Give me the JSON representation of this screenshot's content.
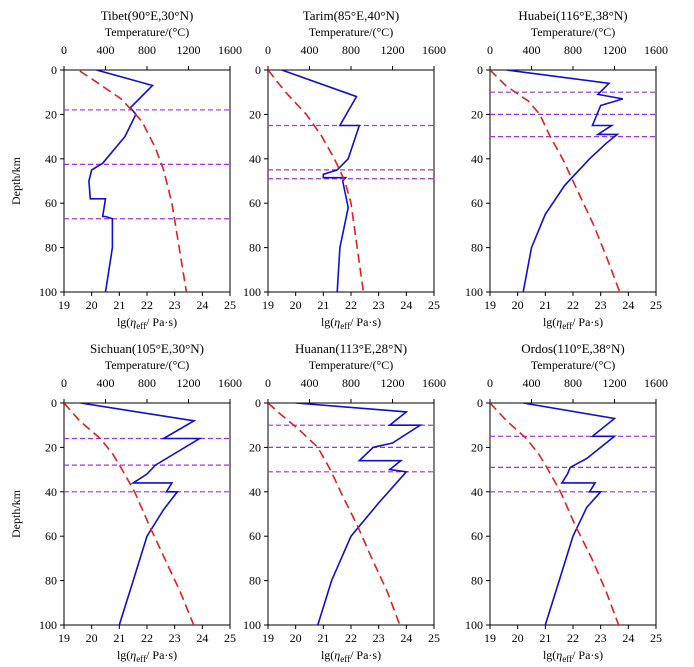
{
  "figure": {
    "y_axis_title": "Depth/km",
    "x_top_title": "Temperature/(°C)",
    "x_bottom_title_prefix": "lg(",
    "x_bottom_title_eta": "η",
    "x_bottom_title_sub": "eff",
    "x_bottom_title_suffix": "/ Pa·s)",
    "colors": {
      "viscosity": "#1010c8",
      "temperature": "#e02020",
      "boundary": "#a030e0"
    }
  },
  "chart_data": [
    {
      "type": "line",
      "title": "Tibet(90°E,30°N)",
      "xlabel": "lg(ηeff/ Pa·s)",
      "xlabel_top": "Temperature/(°C)",
      "ylabel": "Depth/km",
      "xlim": [
        19,
        25
      ],
      "xlim_top": [
        0,
        1600
      ],
      "ylim": [
        0,
        100
      ],
      "y_inverted": true,
      "x_ticks": [
        "19",
        "20",
        "21",
        "22",
        "23",
        "24",
        "25"
      ],
      "x_top_ticks": [
        "0",
        "400",
        "800",
        "1200",
        "1600"
      ],
      "y_ticks": [
        "0",
        "20",
        "40",
        "60",
        "80",
        "100"
      ],
      "series": [
        {
          "name": "viscosity",
          "axis": "bottom",
          "x": [
            19.3,
            22.2,
            21.4,
            21.6,
            21.2,
            20.4,
            20.0,
            19.9,
            19.95,
            20.5,
            20.4,
            20.5,
            20.75,
            20.75,
            20.5
          ],
          "y": [
            -3,
            7,
            17,
            20,
            30,
            42,
            45,
            50,
            58,
            58,
            66,
            66,
            67,
            80,
            100
          ]
        },
        {
          "name": "temperature",
          "axis": "top",
          "x": [
            40,
            300,
            550,
            750,
            880,
            960,
            1040,
            1110,
            1180
          ],
          "y": [
            -3,
            5,
            13,
            23,
            35,
            45,
            60,
            80,
            100
          ]
        }
      ],
      "boundaries": [
        18,
        42.5,
        67
      ]
    },
    {
      "type": "line",
      "title": "Tarim(85°E,40°N)",
      "xlabel": "lg(ηeff/ Pa·s)",
      "xlabel_top": "Temperature/(°C)",
      "ylabel": "Depth/km",
      "xlim": [
        19,
        25
      ],
      "xlim_top": [
        0,
        1600
      ],
      "ylim": [
        0,
        100
      ],
      "y_inverted": true,
      "x_ticks": [
        "19",
        "20",
        "21",
        "22",
        "23",
        "24",
        "25"
      ],
      "x_top_ticks": [
        "0",
        "400",
        "800",
        "1200",
        "1600"
      ],
      "y_ticks": [
        "0",
        "20",
        "40",
        "60",
        "80",
        "100"
      ],
      "series": [
        {
          "name": "viscosity",
          "axis": "bottom",
          "x": [
            19.5,
            22.2,
            21.6,
            22.3,
            21.9,
            21.5,
            21.0,
            21.0,
            21.8,
            21.7,
            21.9,
            21.6,
            21.5
          ],
          "y": [
            0,
            12,
            25,
            25,
            40,
            45,
            47,
            48.5,
            48.5,
            50,
            62,
            80,
            100
          ]
        },
        {
          "name": "temperature",
          "axis": "top",
          "x": [
            0,
            170,
            370,
            520,
            640,
            740,
            800,
            860,
            920
          ],
          "y": [
            0,
            10,
            20,
            30,
            40,
            50,
            60,
            80,
            100
          ]
        }
      ],
      "boundaries": [
        25,
        45,
        49
      ]
    },
    {
      "type": "line",
      "title": "Huabei(116°E,38°N)",
      "xlabel": "lg(ηeff/ Pa·s)",
      "xlabel_top": "Temperature/(°C)",
      "ylabel": "Depth/km",
      "xlim": [
        19,
        25
      ],
      "xlim_top": [
        0,
        1600
      ],
      "ylim": [
        0,
        100
      ],
      "y_inverted": true,
      "x_ticks": [
        "19",
        "20",
        "21",
        "22",
        "23",
        "24",
        "25"
      ],
      "x_top_ticks": [
        "0",
        "400",
        "800",
        "1200",
        "1600"
      ],
      "y_ticks": [
        "0",
        "20",
        "40",
        "60",
        "80",
        "100"
      ],
      "series": [
        {
          "name": "viscosity",
          "axis": "bottom",
          "x": [
            19.6,
            23.3,
            22.9,
            23.8,
            23.0,
            22.7,
            23.4,
            22.9,
            23.6,
            23.2,
            22.6,
            21.7,
            21.0,
            20.5,
            20.2
          ],
          "y": [
            0,
            6,
            11,
            13,
            16,
            25,
            25,
            29,
            29,
            33,
            40,
            52,
            65,
            80,
            100
          ]
        },
        {
          "name": "temperature",
          "axis": "top",
          "x": [
            0,
            150,
            370,
            480,
            580,
            700,
            850,
            1000,
            1130,
            1250
          ],
          "y": [
            0,
            7,
            14,
            20,
            30,
            40,
            55,
            70,
            85,
            100
          ]
        }
      ],
      "boundaries": [
        10,
        20,
        30
      ]
    },
    {
      "type": "line",
      "title": "Sichuan(105°E,30°N)",
      "xlabel": "lg(ηeff/ Pa·s)",
      "xlabel_top": "Temperature/(°C)",
      "ylabel": "Depth/km",
      "xlim": [
        19,
        25
      ],
      "xlim_top": [
        0,
        1600
      ],
      "ylim": [
        0,
        100
      ],
      "y_inverted": true,
      "x_ticks": [
        "19",
        "20",
        "21",
        "22",
        "23",
        "24",
        "25"
      ],
      "x_top_ticks": [
        "0",
        "400",
        "800",
        "1200",
        "1600"
      ],
      "y_ticks": [
        "0",
        "20",
        "40",
        "60",
        "80",
        "100"
      ],
      "series": [
        {
          "name": "viscosity",
          "axis": "bottom",
          "x": [
            19.6,
            23.7,
            22.6,
            23.9,
            22.7,
            22.3,
            22.0,
            21.5,
            22.9,
            22.7,
            23.1,
            22.6,
            22.0,
            21.5,
            21.0
          ],
          "y": [
            0,
            8,
            16,
            16,
            25,
            28,
            32,
            36,
            36,
            40,
            40,
            48,
            60,
            80,
            100
          ]
        },
        {
          "name": "temperature",
          "axis": "top",
          "x": [
            0,
            150,
            350,
            470,
            560,
            680,
            820,
            970,
            1120,
            1250
          ],
          "y": [
            0,
            8,
            16,
            23,
            30,
            40,
            55,
            70,
            85,
            100
          ]
        }
      ],
      "boundaries": [
        16,
        28,
        40
      ]
    },
    {
      "type": "line",
      "title": "Huanan(113°E,28°N)",
      "xlabel": "lg(ηeff/ Pa·s)",
      "xlabel_top": "Temperature/(°C)",
      "ylabel": "Depth/km",
      "xlim": [
        19,
        25
      ],
      "xlim_top": [
        0,
        1600
      ],
      "ylim": [
        0,
        100
      ],
      "y_inverted": true,
      "x_ticks": [
        "19",
        "20",
        "21",
        "22",
        "23",
        "24",
        "25"
      ],
      "x_top_ticks": [
        "0",
        "400",
        "800",
        "1200",
        "1600"
      ],
      "y_ticks": [
        "0",
        "20",
        "40",
        "60",
        "80",
        "100"
      ],
      "series": [
        {
          "name": "viscosity",
          "axis": "bottom",
          "x": [
            20.0,
            24.0,
            23.4,
            24.5,
            23.5,
            22.8,
            22.3,
            23.8,
            23.4,
            24.0,
            23.0,
            22.0,
            21.3,
            20.8
          ],
          "y": [
            0,
            4,
            10,
            10,
            18,
            20,
            26,
            26,
            30,
            31,
            45,
            60,
            80,
            100
          ]
        },
        {
          "name": "temperature",
          "axis": "top",
          "x": [
            0,
            120,
            300,
            480,
            600,
            720,
            860,
            1000,
            1150,
            1270
          ],
          "y": [
            0,
            5,
            12,
            20,
            30,
            42,
            55,
            70,
            85,
            100
          ]
        }
      ],
      "boundaries": [
        10,
        20,
        31
      ]
    },
    {
      "type": "line",
      "title": "Ordos(110°E,38°N)",
      "xlabel": "lg(ηeff/ Pa·s)",
      "xlabel_top": "Temperature/(°C)",
      "ylabel": "Depth/km",
      "xlim": [
        19,
        25
      ],
      "xlim_top": [
        0,
        1600
      ],
      "ylim": [
        0,
        100
      ],
      "y_inverted": true,
      "x_ticks": [
        "19",
        "20",
        "21",
        "22",
        "23",
        "24",
        "25"
      ],
      "x_top_ticks": [
        "0",
        "400",
        "800",
        "1200",
        "1600"
      ],
      "y_ticks": [
        "0",
        "20",
        "40",
        "60",
        "80",
        "100"
      ],
      "series": [
        {
          "name": "viscosity",
          "axis": "bottom",
          "x": [
            20.2,
            23.5,
            22.7,
            23.5,
            22.5,
            21.9,
            21.8,
            21.6,
            22.8,
            22.6,
            23.0,
            22.5,
            22.0,
            21.5,
            21.0
          ],
          "y": [
            0,
            7,
            15,
            15,
            25,
            29,
            32,
            36,
            36,
            40,
            40,
            47,
            60,
            80,
            100
          ]
        },
        {
          "name": "temperature",
          "axis": "top",
          "x": [
            0,
            160,
            350,
            470,
            560,
            680,
            820,
            980,
            1120,
            1240
          ],
          "y": [
            0,
            8,
            16,
            23,
            30,
            40,
            55,
            70,
            85,
            100
          ]
        }
      ],
      "boundaries": [
        15,
        29,
        40
      ]
    }
  ]
}
